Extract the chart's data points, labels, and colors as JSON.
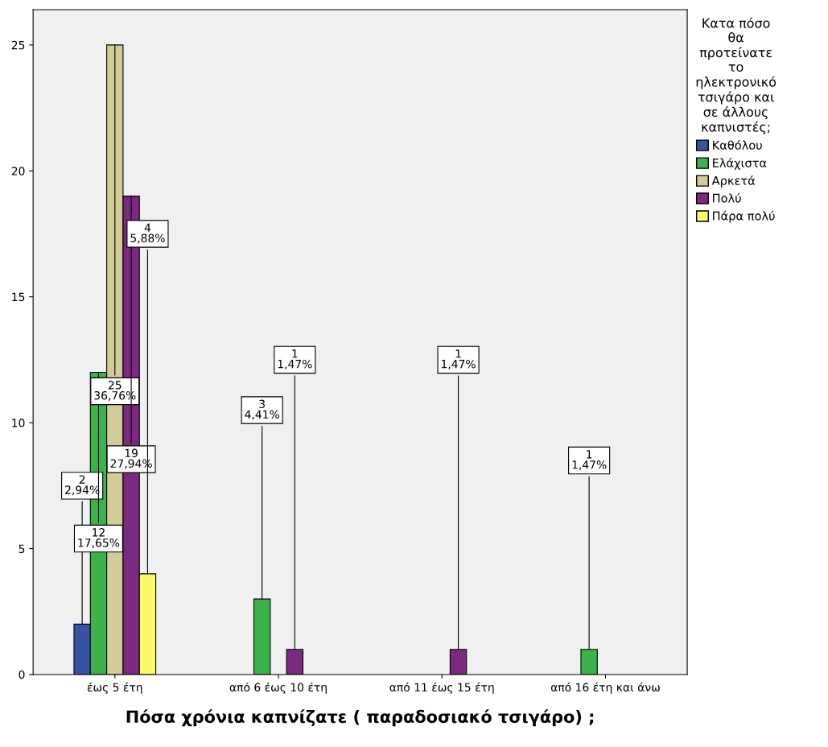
{
  "chart_data": {
    "type": "bar",
    "xlabel": "Πόσα χρόνια καπνίζατε ( παραδοσιακό τσιγάρο) ;",
    "categories": [
      "έως 5 έτη",
      "από 6 έως 10 έτη",
      "από 11 έως 15 έτη",
      "από 16 έτη και άνω"
    ],
    "legend_title": "Κατα πόσο\nθα\nπροτείνατε\nτο\nηλεκτρονικό\nτσιγάρο και\nσε άλλους\nκαπνιστές;",
    "series": [
      {
        "name": "Καθόλου",
        "color": "#3953a4",
        "values": [
          2,
          null,
          null,
          null
        ],
        "value_labels": [
          "2\n2,94%",
          null,
          null,
          null
        ]
      },
      {
        "name": "Ελάχιστα",
        "color": "#3bb34a",
        "values": [
          12,
          3,
          null,
          1
        ],
        "value_labels": [
          "12\n17,65%",
          "3\n4,41%",
          null,
          "1\n1,47%"
        ]
      },
      {
        "name": "Αρκετά",
        "color": "#d4cc98",
        "values": [
          25,
          null,
          null,
          null
        ],
        "value_labels": [
          "25\n36,76%",
          null,
          null,
          null
        ]
      },
      {
        "name": "Πολύ",
        "color": "#7b2a7f",
        "values": [
          19,
          1,
          1,
          null
        ],
        "value_labels": [
          "19\n27,94%",
          "1\n1,47%",
          "1\n1,47%",
          null
        ]
      },
      {
        "name": "Πάρα πολύ",
        "color": "#fbf869",
        "values": [
          4,
          null,
          null,
          null
        ],
        "value_labels": [
          "4\n5,88%",
          null,
          null,
          null
        ]
      }
    ],
    "ylim": [
      0,
      26.4
    ],
    "yticks": [
      0,
      5,
      10,
      15,
      20,
      25
    ],
    "grid": false,
    "legend": "right"
  }
}
